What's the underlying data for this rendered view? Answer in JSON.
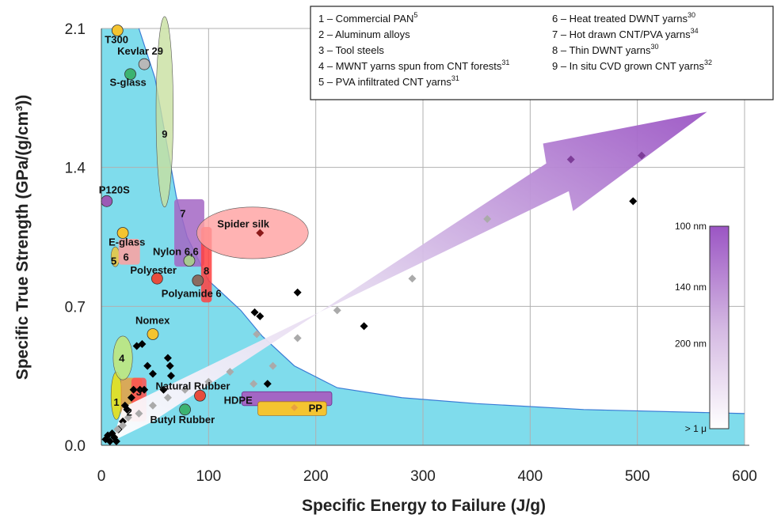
{
  "chart_data": {
    "type": "scatter",
    "xlabel": "Specific Energy to Failure (J/g)",
    "ylabel": "Specific True Strength (GPa/(g/cm³))",
    "xlim": [
      0,
      600
    ],
    "ylim": [
      0,
      2.1
    ],
    "x_ticks": [
      "0",
      "100",
      "200",
      "300",
      "400",
      "500",
      "600"
    ],
    "y_ticks": [
      "0.0",
      "0.7",
      "1.4",
      "2.1"
    ],
    "grid": true,
    "colors": {
      "envelope": "#7fdcec",
      "arrow": "#a366c4",
      "gridline": "#b0b0b0"
    },
    "legend": {
      "placement": "top-right",
      "entries": [
        {
          "num": "1",
          "text": "1 – Commercial PAN",
          "sup": "5"
        },
        {
          "num": "2",
          "text": "2 – Aluminum alloys",
          "sup": ""
        },
        {
          "num": "3",
          "text": "3 – Tool steels",
          "sup": ""
        },
        {
          "num": "4",
          "text": "4 – MWNT yarns spun from CNT forests",
          "sup": "31"
        },
        {
          "num": "5",
          "text": "5 – PVA infiltrated CNT yarns",
          "sup": "31"
        },
        {
          "num": "6",
          "text": "6 – Heat treated DWNT yarns",
          "sup": "30"
        },
        {
          "num": "7",
          "text": "7 – Hot drawn CNT/PVA yarns",
          "sup": "34"
        },
        {
          "num": "8",
          "text": "8 – Thin DWNT yarns",
          "sup": "30"
        },
        {
          "num": "9",
          "text": "9 – In situ CVD grown CNT yarns",
          "sup": "32"
        }
      ]
    },
    "materials": [
      {
        "label": "T300",
        "x": 15,
        "y": 2.09,
        "color": "#f4c430"
      },
      {
        "label": "Kevlar 29",
        "x": 40,
        "y": 1.92,
        "color": "#b8b8b8"
      },
      {
        "label": "S-glass",
        "x": 27,
        "y": 1.87,
        "color": "#3cb371"
      },
      {
        "label": "P120S",
        "x": 5,
        "y": 1.23,
        "color": "#9b59b6"
      },
      {
        "label": "E-glass",
        "x": 20,
        "y": 1.07,
        "color": "#f4c430"
      },
      {
        "label": "Nylon 6,6",
        "x": 82,
        "y": 0.93,
        "color": "#a8c890"
      },
      {
        "label": "Polyester",
        "x": 52,
        "y": 0.84,
        "color": "#e74c3c"
      },
      {
        "label": "Polyamide 6",
        "x": 90,
        "y": 0.83,
        "color": "#8b6b60"
      },
      {
        "label": "Spider silk",
        "x": 148,
        "y": 1.07,
        "color": "#8b1a1a"
      },
      {
        "label": "Nomex",
        "x": 48,
        "y": 0.56,
        "color": "#f4c430"
      },
      {
        "label": "Natural Rubber",
        "x": 92,
        "y": 0.25,
        "color": "#e74c3c"
      },
      {
        "label": "Butyl Rubber",
        "x": 78,
        "y": 0.18,
        "color": "#3cb371"
      },
      {
        "label": "HDPE",
        "x": 132,
        "y": 0.23,
        "color": "#a366c4"
      },
      {
        "label": "PP",
        "x": 180,
        "y": 0.19,
        "color": "#e8a040"
      }
    ],
    "regions": [
      {
        "num": "1",
        "shape": "ellipse",
        "cx": 14,
        "cy": 0.25,
        "rx": 5,
        "ry": 0.12,
        "color": "#f4e000"
      },
      {
        "num": "2",
        "shape": "rect",
        "x0": 18,
        "x1": 38,
        "y0": 0.12,
        "y1": 0.34,
        "color": "#e8a040"
      },
      {
        "num": "3",
        "shape": "rect",
        "x0": 28,
        "x1": 42,
        "y0": 0.12,
        "y1": 0.34,
        "color": "#ff5050"
      },
      {
        "num": "4",
        "shape": "ellipse",
        "cx": 20,
        "cy": 0.44,
        "rx": 9,
        "ry": 0.11,
        "color": "#c8e870"
      },
      {
        "num": "5",
        "shape": "ellipse",
        "cx": 13,
        "cy": 0.95,
        "rx": 4,
        "ry": 0.05,
        "color": "#f4c430"
      },
      {
        "num": "6",
        "shape": "rect",
        "x0": 16,
        "x1": 36,
        "y0": 0.91,
        "y1": 1.04,
        "color": "#ffa0a0"
      },
      {
        "num": "7",
        "shape": "rect",
        "x0": 68,
        "x1": 96,
        "y0": 0.9,
        "y1": 1.24,
        "color": "#a366c4"
      },
      {
        "num": "8",
        "shape": "rect",
        "x0": 93,
        "x1": 103,
        "y0": 0.72,
        "y1": 1.1,
        "color": "#ff4040"
      },
      {
        "num": "9",
        "shape": "ellipse",
        "cx": 59,
        "cy": 1.68,
        "rx": 8,
        "ry": 0.48,
        "color": "#c8e0a0"
      },
      {
        "num": "",
        "shape": "ellipse",
        "cx": 141,
        "cy": 1.07,
        "rx": 52,
        "ry": 0.13,
        "color": "#ffa0a0"
      }
    ],
    "series": [
      {
        "name": "",
        "marker": "diamond",
        "color": "#000000",
        "points": [
          [
            4,
            0.03
          ],
          [
            6,
            0.05
          ],
          [
            8,
            0.02
          ],
          [
            10,
            0.06
          ],
          [
            12,
            0.04
          ],
          [
            14,
            0.02
          ],
          [
            16,
            0.08
          ],
          [
            20,
            0.12
          ],
          [
            22,
            0.2
          ],
          [
            24,
            0.18
          ],
          [
            28,
            0.24
          ],
          [
            30,
            0.28
          ],
          [
            33,
            0.5
          ],
          [
            36,
            0.28
          ],
          [
            38,
            0.51
          ],
          [
            40,
            0.28
          ],
          [
            43,
            0.4
          ],
          [
            48,
            0.36
          ],
          [
            58,
            0.28
          ],
          [
            62,
            0.44
          ],
          [
            64,
            0.4
          ],
          [
            65,
            0.35
          ],
          [
            143,
            0.67
          ],
          [
            148,
            0.65
          ],
          [
            155,
            0.31
          ],
          [
            183,
            0.77
          ],
          [
            245,
            0.6
          ],
          [
            496,
            1.23
          ]
        ]
      },
      {
        "name": "",
        "marker": "diamond",
        "color": "#aaaaaa",
        "points": [
          [
            15,
            0.08
          ],
          [
            20,
            0.1
          ],
          [
            25,
            0.14
          ],
          [
            35,
            0.16
          ],
          [
            48,
            0.2
          ],
          [
            62,
            0.24
          ],
          [
            78,
            0.28
          ],
          [
            100,
            0.32
          ],
          [
            120,
            0.37
          ],
          [
            142,
            0.31
          ],
          [
            145,
            0.56
          ],
          [
            160,
            0.4
          ],
          [
            183,
            0.54
          ],
          [
            220,
            0.68
          ],
          [
            290,
            0.84
          ],
          [
            360,
            1.14
          ]
        ]
      },
      {
        "name": "",
        "marker": "diamond",
        "color": "#7d3c98",
        "points": [
          [
            438,
            1.44
          ],
          [
            504,
            1.46
          ]
        ]
      }
    ],
    "envelope_curve": [
      [
        0,
        2.1
      ],
      [
        35,
        2.1
      ],
      [
        50,
        1.85
      ],
      [
        60,
        1.55
      ],
      [
        70,
        1.25
      ],
      [
        80,
        1.05
      ],
      [
        100,
        0.83
      ],
      [
        130,
        0.68
      ],
      [
        150,
        0.55
      ],
      [
        180,
        0.4
      ],
      [
        220,
        0.29
      ],
      [
        280,
        0.24
      ],
      [
        350,
        0.21
      ],
      [
        450,
        0.18
      ],
      [
        600,
        0.16
      ]
    ],
    "scale_bar": {
      "labels": [
        "100 nm",
        "140 nm",
        "200 nm",
        "> 1 μ"
      ],
      "positions": [
        0,
        0.3,
        0.58,
        1
      ]
    }
  }
}
